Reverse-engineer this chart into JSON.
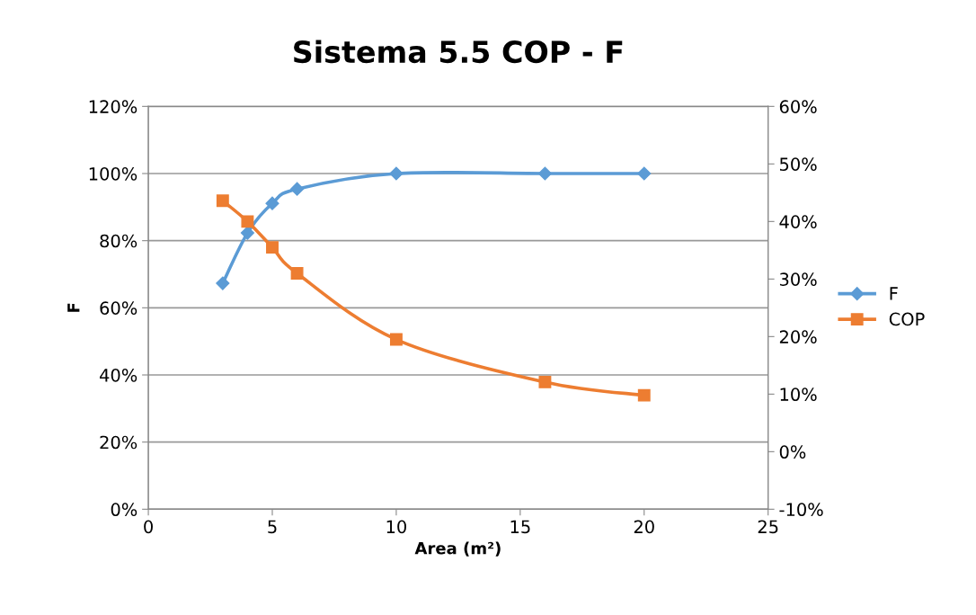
{
  "chart_data": {
    "type": "line",
    "title": "Sistema 5.5 COP - F",
    "xlabel": "Area (m²)",
    "ylabel": "F",
    "xlim": [
      0,
      25
    ],
    "xticks": [
      0,
      5,
      10,
      15,
      20,
      25
    ],
    "ylim": [
      0,
      1.2
    ],
    "yticks": [
      {
        "value": 0,
        "label": "0%"
      },
      {
        "value": 0.2,
        "label": "20%"
      },
      {
        "value": 0.4,
        "label": "40%"
      },
      {
        "value": 0.6,
        "label": "60%"
      },
      {
        "value": 0.8,
        "label": "80%"
      },
      {
        "value": 1.0,
        "label": "100%"
      },
      {
        "value": 1.2,
        "label": "120%"
      }
    ],
    "y2lim": [
      -0.1,
      0.6
    ],
    "y2ticks": [
      {
        "value": -0.1,
        "label": "-10%"
      },
      {
        "value": 0,
        "label": "0%"
      },
      {
        "value": 0.1,
        "label": "10%"
      },
      {
        "value": 0.2,
        "label": "20%"
      },
      {
        "value": 0.3,
        "label": "30%"
      },
      {
        "value": 0.4,
        "label": "40%"
      },
      {
        "value": 0.5,
        "label": "50%"
      },
      {
        "value": 0.6,
        "label": "60%"
      }
    ],
    "grid": "y",
    "legend": "right",
    "series": [
      {
        "name": "F",
        "color": "#5b9bd5",
        "marker": "diamond",
        "x": [
          3,
          4,
          5,
          6,
          10,
          16,
          20
        ],
        "values": [
          0.673,
          0.823,
          0.911,
          0.954,
          1.0,
          1.0,
          1.0
        ]
      },
      {
        "name": "COP",
        "color": "#ed7d31",
        "marker": "square",
        "axis": "y2",
        "x": [
          3,
          4,
          5,
          6,
          10,
          16,
          20
        ],
        "values": [
          0.436,
          0.4,
          0.355,
          0.31,
          0.195,
          0.121,
          0.098
        ]
      }
    ]
  }
}
